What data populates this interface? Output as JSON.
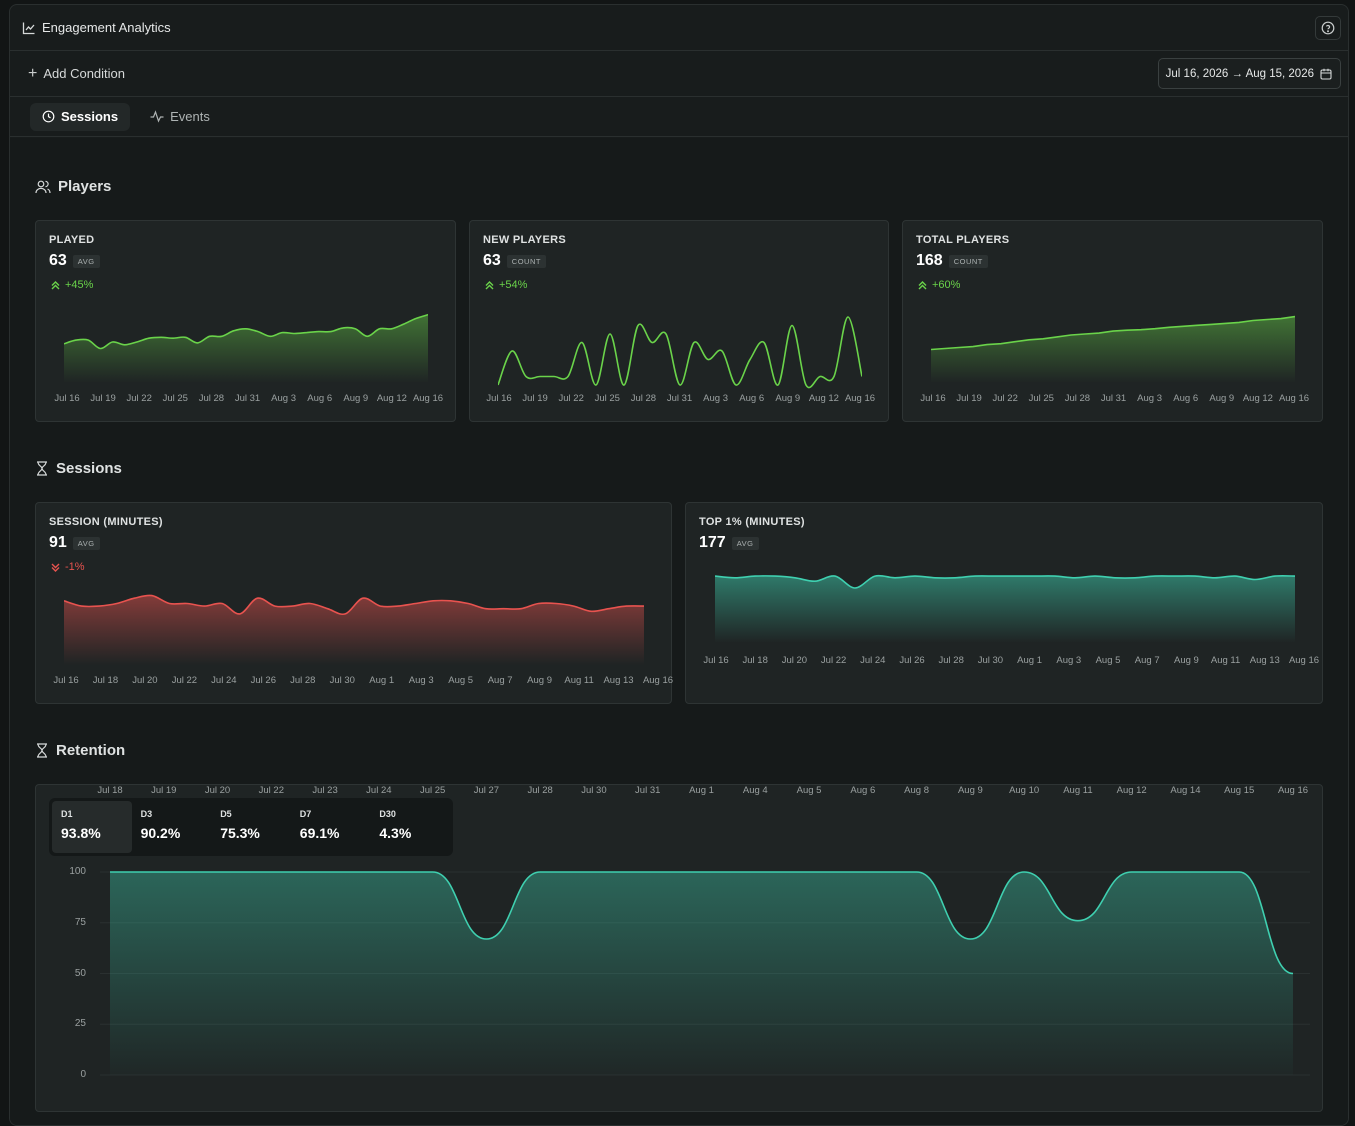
{
  "header": {
    "title": "Engagement Analytics",
    "help_icon": "help-circle-icon"
  },
  "conditions": {
    "add_label": "Add Condition",
    "date_range": "Jul 16, 2026 → Aug 15, 2026"
  },
  "tabs": [
    {
      "label": "Sessions",
      "active": true
    },
    {
      "label": "Events",
      "active": false
    }
  ],
  "colors": {
    "green": "#6ad34a",
    "red": "#e8534f",
    "teal": "#3fd0b0"
  },
  "sections": {
    "players": "Players",
    "sessions": "Sessions",
    "retention": "Retention"
  },
  "players_cards": [
    {
      "label": "PLAYED",
      "value": "63",
      "badge": "AVG",
      "delta": "+45%",
      "trend": "up",
      "ticks": [
        "Jul 16",
        "Jul 19",
        "Jul 22",
        "Jul 25",
        "Jul 28",
        "Jul 31",
        "Aug 3",
        "Aug 6",
        "Aug 9",
        "Aug 12",
        "Aug 16"
      ]
    },
    {
      "label": "NEW PLAYERS",
      "value": "63",
      "badge": "COUNT",
      "delta": "+54%",
      "trend": "up",
      "ticks": [
        "Jul 16",
        "Jul 19",
        "Jul 22",
        "Jul 25",
        "Jul 28",
        "Jul 31",
        "Aug 3",
        "Aug 6",
        "Aug 9",
        "Aug 12",
        "Aug 16"
      ]
    },
    {
      "label": "TOTAL PLAYERS",
      "value": "168",
      "badge": "COUNT",
      "delta": "+60%",
      "trend": "up",
      "ticks": [
        "Jul 16",
        "Jul 19",
        "Jul 22",
        "Jul 25",
        "Jul 28",
        "Jul 31",
        "Aug 3",
        "Aug 6",
        "Aug 9",
        "Aug 12",
        "Aug 16"
      ]
    }
  ],
  "sessions_cards": [
    {
      "label": "SESSION (MINUTES)",
      "value": "91",
      "badge": "AVG",
      "delta": "-1%",
      "trend": "down",
      "ticks": [
        "Jul 16",
        "Jul 18",
        "Jul 20",
        "Jul 22",
        "Jul 24",
        "Jul 26",
        "Jul 28",
        "Jul 30",
        "Aug 1",
        "Aug 3",
        "Aug 5",
        "Aug 7",
        "Aug 9",
        "Aug 11",
        "Aug 13",
        "Aug 16"
      ]
    },
    {
      "label": "TOP 1% (MINUTES)",
      "value": "177",
      "badge": "AVG",
      "ticks": [
        "Jul 16",
        "Jul 18",
        "Jul 20",
        "Jul 22",
        "Jul 24",
        "Jul 26",
        "Jul 28",
        "Jul 30",
        "Aug 1",
        "Aug 3",
        "Aug 5",
        "Aug 7",
        "Aug 9",
        "Aug 11",
        "Aug 13",
        "Aug 16"
      ]
    }
  ],
  "retention": {
    "tabs": [
      {
        "label": "D1",
        "value": "93.8%",
        "active": true
      },
      {
        "label": "D3",
        "value": "90.2%",
        "active": false
      },
      {
        "label": "D5",
        "value": "75.3%",
        "active": false
      },
      {
        "label": "D7",
        "value": "69.1%",
        "active": false
      },
      {
        "label": "D30",
        "value": "4.3%",
        "active": false
      }
    ],
    "yticks": [
      "100",
      "75",
      "50",
      "25",
      "0"
    ],
    "xticks": [
      "Jul 18",
      "Jul 19",
      "Jul 20",
      "Jul 22",
      "Jul 23",
      "Jul 24",
      "Jul 25",
      "Jul 27",
      "Jul 28",
      "Jul 30",
      "Jul 31",
      "Aug 1",
      "Aug 4",
      "Aug 5",
      "Aug 6",
      "Aug 8",
      "Aug 9",
      "Aug 10",
      "Aug 11",
      "Aug 12",
      "Aug 14",
      "Aug 15",
      "Aug 16"
    ]
  },
  "chart_data": [
    {
      "type": "area",
      "title": "PLAYED",
      "series": [
        {
          "values": [
            58,
            62,
            62,
            53,
            60,
            57,
            60,
            64,
            65,
            64,
            65,
            59,
            66,
            66,
            72,
            74,
            71,
            66,
            70,
            69,
            70,
            71,
            71,
            75,
            74,
            66,
            74,
            74,
            79,
            85,
            89
          ]
        }
      ]
    },
    {
      "type": "line",
      "title": "NEW PLAYERS",
      "series": [
        {
          "values": [
            10,
            50,
            20,
            20,
            20,
            20,
            60,
            10,
            70,
            10,
            80,
            60,
            70,
            10,
            60,
            40,
            50,
            10,
            40,
            60,
            10,
            80,
            10,
            20,
            20,
            90,
            20
          ]
        }
      ]
    },
    {
      "type": "area",
      "title": "TOTAL PLAYERS",
      "series": [
        {
          "values": [
            100,
            102,
            104,
            106,
            110,
            112,
            116,
            120,
            122,
            126,
            130,
            132,
            134,
            138,
            140,
            141,
            143,
            146,
            148,
            150,
            152,
            154,
            156,
            160,
            162,
            164,
            168
          ]
        }
      ]
    },
    {
      "type": "area",
      "title": "SESSION (MINUTES)",
      "series": [
        {
          "values": [
            93,
            91,
            91,
            92,
            94,
            95,
            92,
            92,
            91,
            92,
            88,
            94,
            91,
            91,
            92,
            90,
            88,
            94,
            91,
            91,
            92,
            93,
            93,
            92,
            90,
            90,
            90,
            92,
            92,
            91,
            89,
            90,
            91,
            91
          ]
        }
      ]
    },
    {
      "type": "area",
      "title": "TOP 1% (MINUTES)",
      "series": [
        {
          "values": [
            177,
            176,
            177,
            177,
            176,
            174,
            177,
            170,
            177,
            176,
            177,
            176,
            176,
            177,
            177,
            177,
            177,
            177,
            176,
            177,
            176,
            176,
            177,
            177,
            177,
            176,
            177,
            175,
            177,
            177
          ]
        }
      ]
    },
    {
      "type": "area",
      "title": "Retention",
      "ylim": [
        0,
        100
      ],
      "categories": [
        "Jul 18",
        "Jul 19",
        "Jul 20",
        "Jul 22",
        "Jul 23",
        "Jul 24",
        "Jul 25",
        "Jul 27",
        "Jul 28",
        "Jul 30",
        "Jul 31",
        "Aug 1",
        "Aug 4",
        "Aug 5",
        "Aug 6",
        "Aug 8",
        "Aug 9",
        "Aug 10",
        "Aug 11",
        "Aug 12",
        "Aug 14",
        "Aug 15",
        "Aug 16"
      ],
      "series": [
        {
          "values": [
            100,
            100,
            100,
            100,
            100,
            100,
            100,
            67,
            100,
            100,
            100,
            100,
            100,
            100,
            100,
            100,
            67,
            100,
            76,
            100,
            100,
            100,
            50
          ]
        }
      ]
    }
  ]
}
